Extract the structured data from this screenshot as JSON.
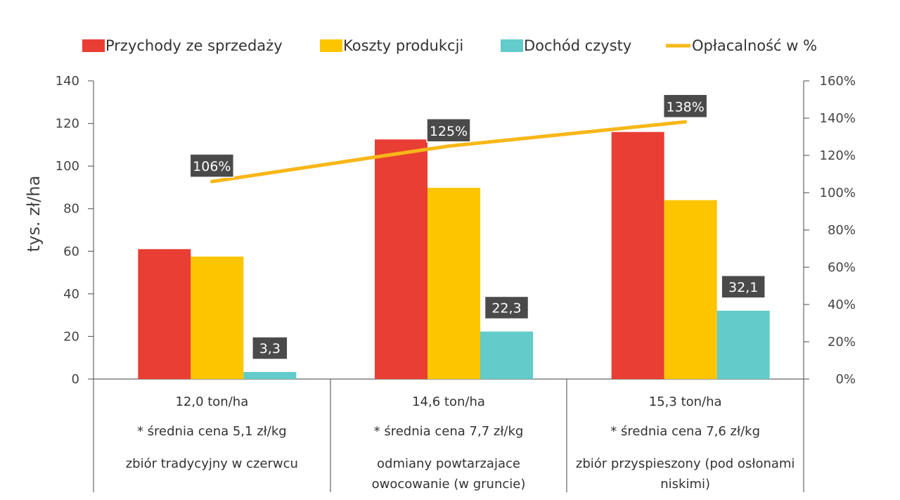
{
  "chart_data": {
    "type": "bar",
    "ylabel": "tys. zł/ha",
    "ylim": [
      0,
      140
    ],
    "y_ticks": [
      "0",
      "20",
      "40",
      "60",
      "80",
      "100",
      "120",
      "140"
    ],
    "y2lim": [
      0,
      160
    ],
    "y2_ticks": [
      "0%",
      "20%",
      "40%",
      "60%",
      "80%",
      "100%",
      "120%",
      "140%",
      "160%"
    ],
    "grid": false,
    "legend_position": "top",
    "categories": [
      {
        "lines": [
          "12,0 ton/ha",
          "* średnia cena 5,1 zł/kg",
          "zbiór tradycyjny w czerwcu"
        ]
      },
      {
        "lines": [
          "14,6 ton/ha",
          "* średnia cena 7,7 zł/kg",
          "odmiany powtarzajace",
          "owocowanie (w gruncie)"
        ]
      },
      {
        "lines": [
          "15,3 ton/ha",
          "* średnia cena 7,6 zł/kg",
          "zbiór przyspieszony (pod osłonami",
          "niskimi)"
        ]
      }
    ],
    "series": [
      {
        "name": "Przychody ze sprzedaży",
        "kind": "bar",
        "color": "#e83e33",
        "values": [
          61,
          112.5,
          116
        ]
      },
      {
        "name": "Koszty produkcji",
        "kind": "bar",
        "color": "#fcc500",
        "values": [
          57.5,
          89.8,
          84
        ]
      },
      {
        "name": "Dochód czysty",
        "kind": "bar",
        "color": "#63cbc9",
        "values": [
          3.3,
          22.3,
          32.1
        ],
        "labels": [
          "3,3",
          "22,3",
          "32,1"
        ]
      },
      {
        "name": "Opłacalność w %",
        "kind": "line",
        "axis": "right",
        "color": "#f7b718",
        "values": [
          106,
          125,
          138
        ],
        "labels": [
          "106%",
          "125%",
          "138%"
        ]
      }
    ]
  }
}
